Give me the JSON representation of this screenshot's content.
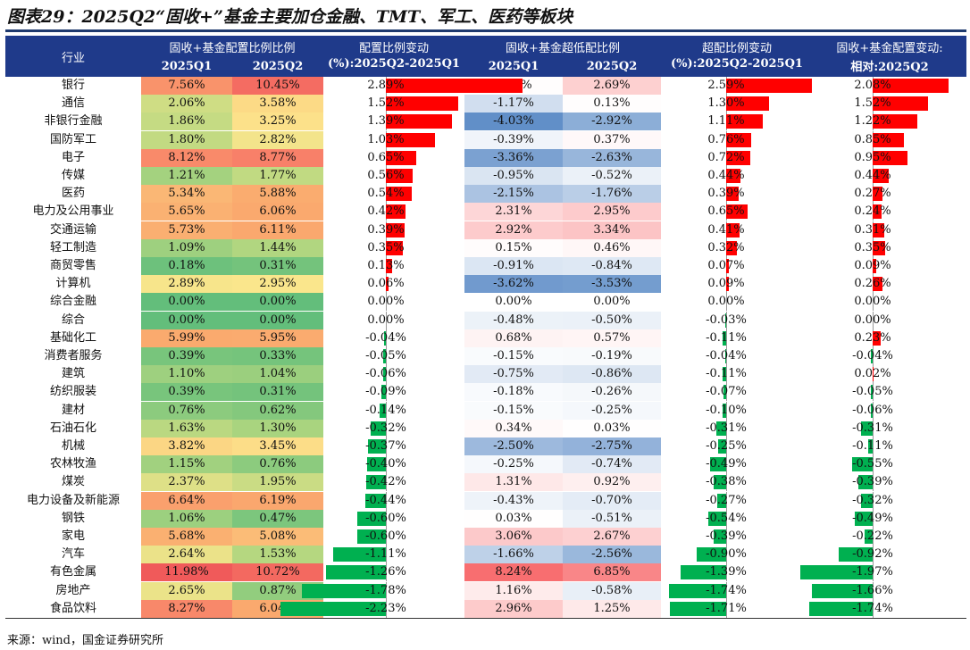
{
  "title": "图表29：2025Q2“固收+”基金主要加仓金融、TMT、军工、医药等板块",
  "source": "来源：wind，国金证券研究所",
  "headers": {
    "industry": "行业",
    "alloc_ratio": "固收+基金配置比例比例",
    "alloc_change_1": "配置比例变动",
    "alloc_change_2": "(%):2025Q2-2025Q1",
    "over_ratio": "固收+基金超低配比例",
    "over_change_1": "超配比例变动",
    "over_change_2": "(%):2025Q2-2025Q1",
    "rel_change_1": "固收+基金配置变动:",
    "rel_change_2": "相对:2025Q2",
    "q1": "2025Q1",
    "q2": "2025Q2"
  },
  "colors": {
    "header_bg": "#1f3a8a",
    "bar_pos": "#ff0000",
    "bar_neg": "#00b050"
  },
  "rows": [
    {
      "industry": "银行",
      "a1": "7.56%",
      "a2": "10.45%",
      "d1": "2.89%",
      "o1": "0.10%",
      "o2": "2.69%",
      "d2": "2.59%",
      "d3": "2.08%"
    },
    {
      "industry": "通信",
      "a1": "2.06%",
      "a2": "3.58%",
      "d1": "1.52%",
      "o1": "-1.17%",
      "o2": "0.13%",
      "d2": "1.30%",
      "d3": "1.52%"
    },
    {
      "industry": "非银行金融",
      "a1": "1.86%",
      "a2": "3.25%",
      "d1": "1.39%",
      "o1": "-4.03%",
      "o2": "-2.92%",
      "d2": "1.11%",
      "d3": "1.22%"
    },
    {
      "industry": "国防军工",
      "a1": "1.80%",
      "a2": "2.82%",
      "d1": "1.03%",
      "o1": "-0.39%",
      "o2": "0.37%",
      "d2": "0.76%",
      "d3": "0.85%"
    },
    {
      "industry": "电子",
      "a1": "8.12%",
      "a2": "8.77%",
      "d1": "0.65%",
      "o1": "-3.36%",
      "o2": "-2.63%",
      "d2": "0.72%",
      "d3": "0.95%"
    },
    {
      "industry": "传媒",
      "a1": "1.21%",
      "a2": "1.77%",
      "d1": "0.56%",
      "o1": "-0.95%",
      "o2": "-0.52%",
      "d2": "0.44%",
      "d3": "0.44%"
    },
    {
      "industry": "医药",
      "a1": "5.34%",
      "a2": "5.88%",
      "d1": "0.54%",
      "o1": "-2.15%",
      "o2": "-1.76%",
      "d2": "0.39%",
      "d3": "0.27%"
    },
    {
      "industry": "电力及公用事业",
      "a1": "5.65%",
      "a2": "6.06%",
      "d1": "0.42%",
      "o1": "2.31%",
      "o2": "2.95%",
      "d2": "0.65%",
      "d3": "0.24%"
    },
    {
      "industry": "交通运输",
      "a1": "5.73%",
      "a2": "6.11%",
      "d1": "0.39%",
      "o1": "2.92%",
      "o2": "3.34%",
      "d2": "0.41%",
      "d3": "0.31%"
    },
    {
      "industry": "轻工制造",
      "a1": "1.09%",
      "a2": "1.44%",
      "d1": "0.35%",
      "o1": "0.15%",
      "o2": "0.46%",
      "d2": "0.32%",
      "d3": "0.35%"
    },
    {
      "industry": "商贸零售",
      "a1": "0.18%",
      "a2": "0.31%",
      "d1": "0.13%",
      "o1": "-0.91%",
      "o2": "-0.84%",
      "d2": "0.07%",
      "d3": "0.09%"
    },
    {
      "industry": "计算机",
      "a1": "2.89%",
      "a2": "2.95%",
      "d1": "0.06%",
      "o1": "-3.62%",
      "o2": "-3.53%",
      "d2": "0.09%",
      "d3": "0.26%"
    },
    {
      "industry": "综合金融",
      "a1": "0.00%",
      "a2": "0.00%",
      "d1": "0.00%",
      "o1": "0.00%",
      "o2": "0.00%",
      "d2": "0.00%",
      "d3": "0.00%"
    },
    {
      "industry": "综合",
      "a1": "0.00%",
      "a2": "0.00%",
      "d1": "0.00%",
      "o1": "-0.48%",
      "o2": "-0.50%",
      "d2": "-0.03%",
      "d3": "0.00%"
    },
    {
      "industry": "基础化工",
      "a1": "5.99%",
      "a2": "5.95%",
      "d1": "-0.04%",
      "o1": "0.68%",
      "o2": "0.57%",
      "d2": "-0.11%",
      "d3": "0.23%"
    },
    {
      "industry": "消费者服务",
      "a1": "0.39%",
      "a2": "0.33%",
      "d1": "-0.05%",
      "o1": "-0.15%",
      "o2": "-0.19%",
      "d2": "-0.04%",
      "d3": "-0.04%"
    },
    {
      "industry": "建筑",
      "a1": "1.10%",
      "a2": "1.04%",
      "d1": "-0.06%",
      "o1": "-0.75%",
      "o2": "-0.86%",
      "d2": "-0.11%",
      "d3": "0.02%"
    },
    {
      "industry": "纺织服装",
      "a1": "0.39%",
      "a2": "0.31%",
      "d1": "-0.09%",
      "o1": "-0.18%",
      "o2": "-0.26%",
      "d2": "-0.07%",
      "d3": "-0.05%"
    },
    {
      "industry": "建材",
      "a1": "0.76%",
      "a2": "0.62%",
      "d1": "-0.14%",
      "o1": "-0.15%",
      "o2": "-0.25%",
      "d2": "-0.10%",
      "d3": "-0.06%"
    },
    {
      "industry": "石油石化",
      "a1": "1.63%",
      "a2": "1.30%",
      "d1": "-0.32%",
      "o1": "0.34%",
      "o2": "0.03%",
      "d2": "-0.31%",
      "d3": "-0.31%"
    },
    {
      "industry": "机械",
      "a1": "3.82%",
      "a2": "3.45%",
      "d1": "-0.37%",
      "o1": "-2.50%",
      "o2": "-2.75%",
      "d2": "-0.25%",
      "d3": "-0.11%"
    },
    {
      "industry": "农林牧渔",
      "a1": "1.15%",
      "a2": "0.76%",
      "d1": "-0.40%",
      "o1": "-0.25%",
      "o2": "-0.74%",
      "d2": "-0.49%",
      "d3": "-0.55%"
    },
    {
      "industry": "煤炭",
      "a1": "2.37%",
      "a2": "1.95%",
      "d1": "-0.42%",
      "o1": "1.31%",
      "o2": "0.92%",
      "d2": "-0.38%",
      "d3": "-0.39%"
    },
    {
      "industry": "电力设备及新能源",
      "a1": "6.64%",
      "a2": "6.19%",
      "d1": "-0.44%",
      "o1": "-0.43%",
      "o2": "-0.70%",
      "d2": "-0.27%",
      "d3": "-0.32%"
    },
    {
      "industry": "钢铁",
      "a1": "1.06%",
      "a2": "0.47%",
      "d1": "-0.60%",
      "o1": "0.03%",
      "o2": "-0.51%",
      "d2": "-0.54%",
      "d3": "-0.49%"
    },
    {
      "industry": "家电",
      "a1": "5.68%",
      "a2": "5.08%",
      "d1": "-0.60%",
      "o1": "3.06%",
      "o2": "2.67%",
      "d2": "-0.39%",
      "d3": "-0.22%"
    },
    {
      "industry": "汽车",
      "a1": "2.64%",
      "a2": "1.53%",
      "d1": "-1.11%",
      "o1": "-1.66%",
      "o2": "-2.56%",
      "d2": "-0.90%",
      "d3": "-0.92%"
    },
    {
      "industry": "有色金属",
      "a1": "11.98%",
      "a2": "10.72%",
      "d1": "-1.26%",
      "o1": "8.24%",
      "o2": "6.85%",
      "d2": "-1.39%",
      "d3": "-1.97%"
    },
    {
      "industry": "房地产",
      "a1": "2.65%",
      "a2": "0.87%",
      "d1": "-1.78%",
      "o1": "1.16%",
      "o2": "-0.58%",
      "d2": "-1.74%",
      "d3": "-1.66%"
    },
    {
      "industry": "食品饮料",
      "a1": "8.27%",
      "a2": "6.04%",
      "d1": "-2.23%",
      "o1": "2.96%",
      "o2": "1.25%",
      "d2": "-1.71%",
      "d3": "-1.74%"
    }
  ]
}
